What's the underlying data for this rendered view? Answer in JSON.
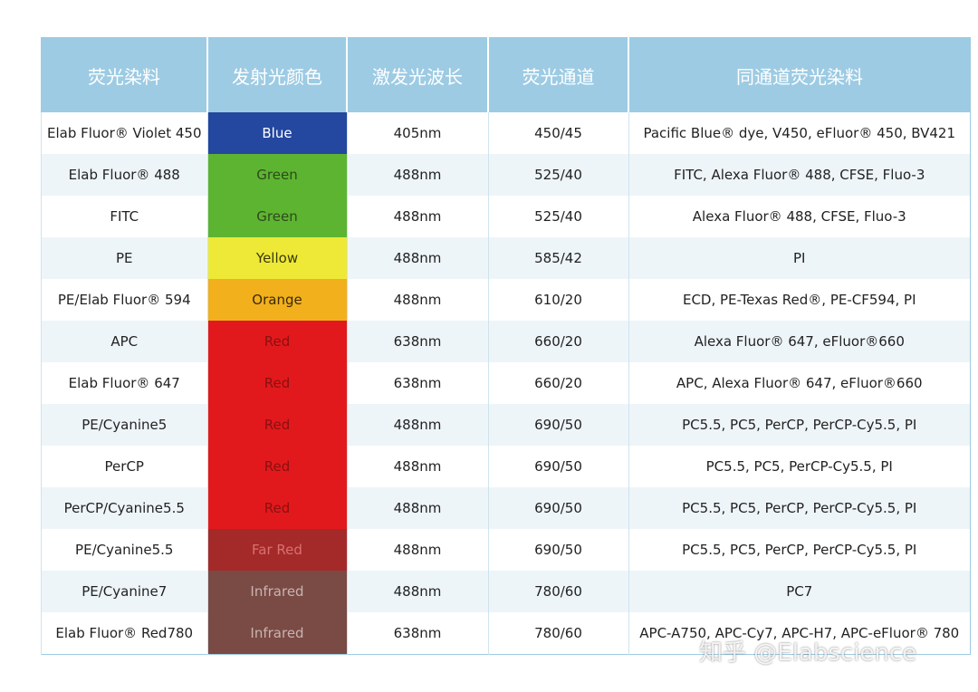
{
  "table": {
    "header": [
      "荧光染料",
      "发射光颜色",
      "激发光波长",
      "荧光通道",
      "同通道荧光染料"
    ],
    "rows": [
      [
        "Elab Fluor® Violet 450",
        "Blue",
        "405nm",
        "450/45",
        "Pacific Blue® dye, V450, eFluor® 450, BV421"
      ],
      [
        "Elab Fluor® 488",
        "Green",
        "488nm",
        "525/40",
        "FITC, Alexa Fluor® 488, CFSE, Fluo-3"
      ],
      [
        "FITC",
        "Green",
        "488nm",
        "525/40",
        "Alexa Fluor® 488, CFSE, Fluo-3"
      ],
      [
        "PE",
        "Yellow",
        "488nm",
        "585/42",
        "PI"
      ],
      [
        "PE/Elab Fluor® 594",
        "Orange",
        "488nm",
        "610/20",
        "ECD, PE-Texas Red®, PE-CF594, PI"
      ],
      [
        "APC",
        "Red",
        "638nm",
        "660/20",
        "Alexa Fluor® 647, eFluor®660"
      ],
      [
        "Elab Fluor® 647",
        "Red",
        "638nm",
        "660/20",
        "APC, Alexa Fluor® 647, eFluor®660"
      ],
      [
        "PE/Cyanine5",
        "Red",
        "488nm",
        "690/50",
        "PC5.5, PC5, PerCP, PerCP-Cy5.5, PI"
      ],
      [
        "PerCP",
        "Red",
        "488nm",
        "690/50",
        "PC5.5, PC5, PerCP-Cy5.5, PI"
      ],
      [
        "PerCP/Cyanine5.5",
        "Red",
        "488nm",
        "690/50",
        "PC5.5, PC5, PerCP, PerCP-Cy5.5, PI"
      ],
      [
        "PE/Cyanine5.5",
        "Far Red",
        "488nm",
        "690/50",
        "PC5.5, PC5, PerCP, PerCP-Cy5.5, PI"
      ],
      [
        "PE/Cyanine7",
        "Infrared",
        "488nm",
        "780/60",
        "PC7"
      ],
      [
        "Elab Fluor® Red780",
        "Infrared",
        "638nm",
        "780/60",
        "APC-A750, APC-Cy7, APC-H7, APC-eFluor® 780"
      ]
    ],
    "emission_colors": [
      "#24479f",
      "#5db431",
      "#5db431",
      "#eee936",
      "#f2b01c",
      "#e2191c",
      "#e2191c",
      "#e2191c",
      "#e2191c",
      "#e2191c",
      "#a42a29",
      "#7a4a45",
      "#7a4a45"
    ],
    "emission_text_colors": [
      "#ffffff",
      "#2e4a1e",
      "#2e4a1e",
      "#3a3a10",
      "#3a2a08",
      "#8a1010",
      "#8a1010",
      "#8a1010",
      "#8a1010",
      "#8a1010",
      "#d87070",
      "#c8b4b0",
      "#c8b4b0"
    ]
  },
  "watermark": "知乎 @Elabscience"
}
